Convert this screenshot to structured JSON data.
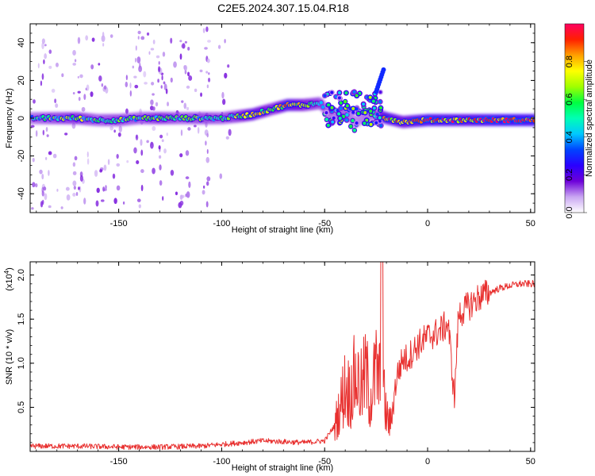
{
  "title": "C2E5.2024.307.15.04.R18",
  "colors": {
    "snr_line": "#e8302f",
    "axis": "#000000",
    "background": "#ffffff"
  },
  "chart_data": [
    {
      "type": "heatmap",
      "xlabel": "Height of straight line (km)",
      "ylabel": "Frequency (Hz)",
      "xlim": [
        -193,
        52
      ],
      "ylim": [
        -50,
        50
      ],
      "x_ticks": [
        -150,
        -100,
        -50,
        0,
        50
      ],
      "x_tick_labels": [
        "-150",
        "-100",
        "-50",
        "0",
        "50"
      ],
      "y_ticks": [
        -40,
        -20,
        0,
        20,
        40
      ],
      "y_tick_labels": [
        "-40",
        "-20",
        "0",
        "20",
        "40"
      ],
      "colorbar": {
        "label": "Normalized spectral amplitude",
        "range": [
          0,
          1
        ],
        "ticks": [
          0.0,
          0.2,
          0.4,
          0.6,
          0.8
        ],
        "tick_labels": [
          "0.0",
          "0.2",
          "0.4",
          "0.6",
          "0.8"
        ],
        "colormap": [
          "#ffffff",
          "#c9a6f2",
          "#6d00d9",
          "#2a00ff",
          "#0044ff",
          "#00c8ff",
          "#00ffb4",
          "#00ff40",
          "#a0ff00",
          "#ffff00",
          "#ffa000",
          "#ff2000",
          "#ff0060"
        ]
      },
      "ridge": [
        [
          -193,
          0,
          0.45
        ],
        [
          -180,
          0,
          0.55
        ],
        [
          -170,
          0,
          0.6
        ],
        [
          -160,
          -1,
          0.5
        ],
        [
          -150,
          -1,
          0.55
        ],
        [
          -140,
          0,
          0.5
        ],
        [
          -130,
          0,
          0.6
        ],
        [
          -120,
          0,
          0.5
        ],
        [
          -110,
          0,
          0.55
        ],
        [
          -100,
          0,
          0.5
        ],
        [
          -92,
          1,
          0.6
        ],
        [
          -85,
          2,
          0.75
        ],
        [
          -75,
          5,
          0.6
        ],
        [
          -68,
          7,
          0.8
        ],
        [
          -60,
          7,
          0.65
        ],
        [
          -52,
          8,
          0.55
        ],
        [
          -46,
          0,
          0.45
        ],
        [
          -40,
          3,
          0.5
        ],
        [
          -35,
          -2,
          0.4
        ],
        [
          -30,
          1,
          0.45
        ],
        [
          -25,
          2,
          0.45
        ],
        [
          -20,
          0,
          0.85
        ],
        [
          -12,
          -2,
          0.7
        ],
        [
          0,
          -1,
          0.9
        ],
        [
          10,
          -1,
          0.85
        ],
        [
          20,
          -1,
          0.8
        ],
        [
          30,
          -1,
          0.9
        ],
        [
          40,
          -1,
          0.95
        ],
        [
          50,
          -1,
          0.9
        ]
      ]
    },
    {
      "type": "line",
      "xlabel": "Height of straight line (km)",
      "ylabel": "SNR (10 * v/v)",
      "y_scale_label": "(x10",
      "y_scale_exponent": "4",
      "xlim": [
        -193,
        52
      ],
      "ylim": [
        0,
        2.15
      ],
      "x_ticks": [
        -150,
        -100,
        -50,
        0,
        50
      ],
      "x_tick_labels": [
        "-150",
        "-100",
        "-50",
        "0",
        "50"
      ],
      "y_ticks": [
        0.5,
        1.0,
        1.5,
        2.0
      ],
      "y_tick_labels": [
        "0.5",
        "1.0",
        "1.5",
        "2.0"
      ],
      "series": [
        {
          "x": [
            -193,
            -170,
            -150,
            -130,
            -110,
            -100,
            -90,
            -80,
            -70,
            -60,
            -50,
            -45,
            -42,
            -40,
            -38,
            -35,
            -32,
            -30,
            -28,
            -25,
            -22,
            -20,
            -18,
            -15,
            -12,
            -10,
            -5,
            0,
            5,
            10,
            13,
            15,
            20,
            25,
            30,
            35,
            40,
            45,
            50,
            52
          ],
          "y": [
            0.06,
            0.06,
            0.05,
            0.05,
            0.06,
            0.08,
            0.1,
            0.12,
            0.11,
            0.1,
            0.12,
            0.3,
            0.55,
            0.75,
            0.65,
            0.85,
            0.7,
            0.9,
            0.6,
            0.9,
            0.75,
            0.4,
            0.3,
            0.85,
            1.05,
            1.05,
            1.2,
            1.3,
            1.35,
            1.45,
            0.6,
            1.55,
            1.65,
            1.75,
            1.8,
            1.85,
            1.88,
            1.9,
            1.9,
            1.9
          ]
        }
      ]
    }
  ]
}
